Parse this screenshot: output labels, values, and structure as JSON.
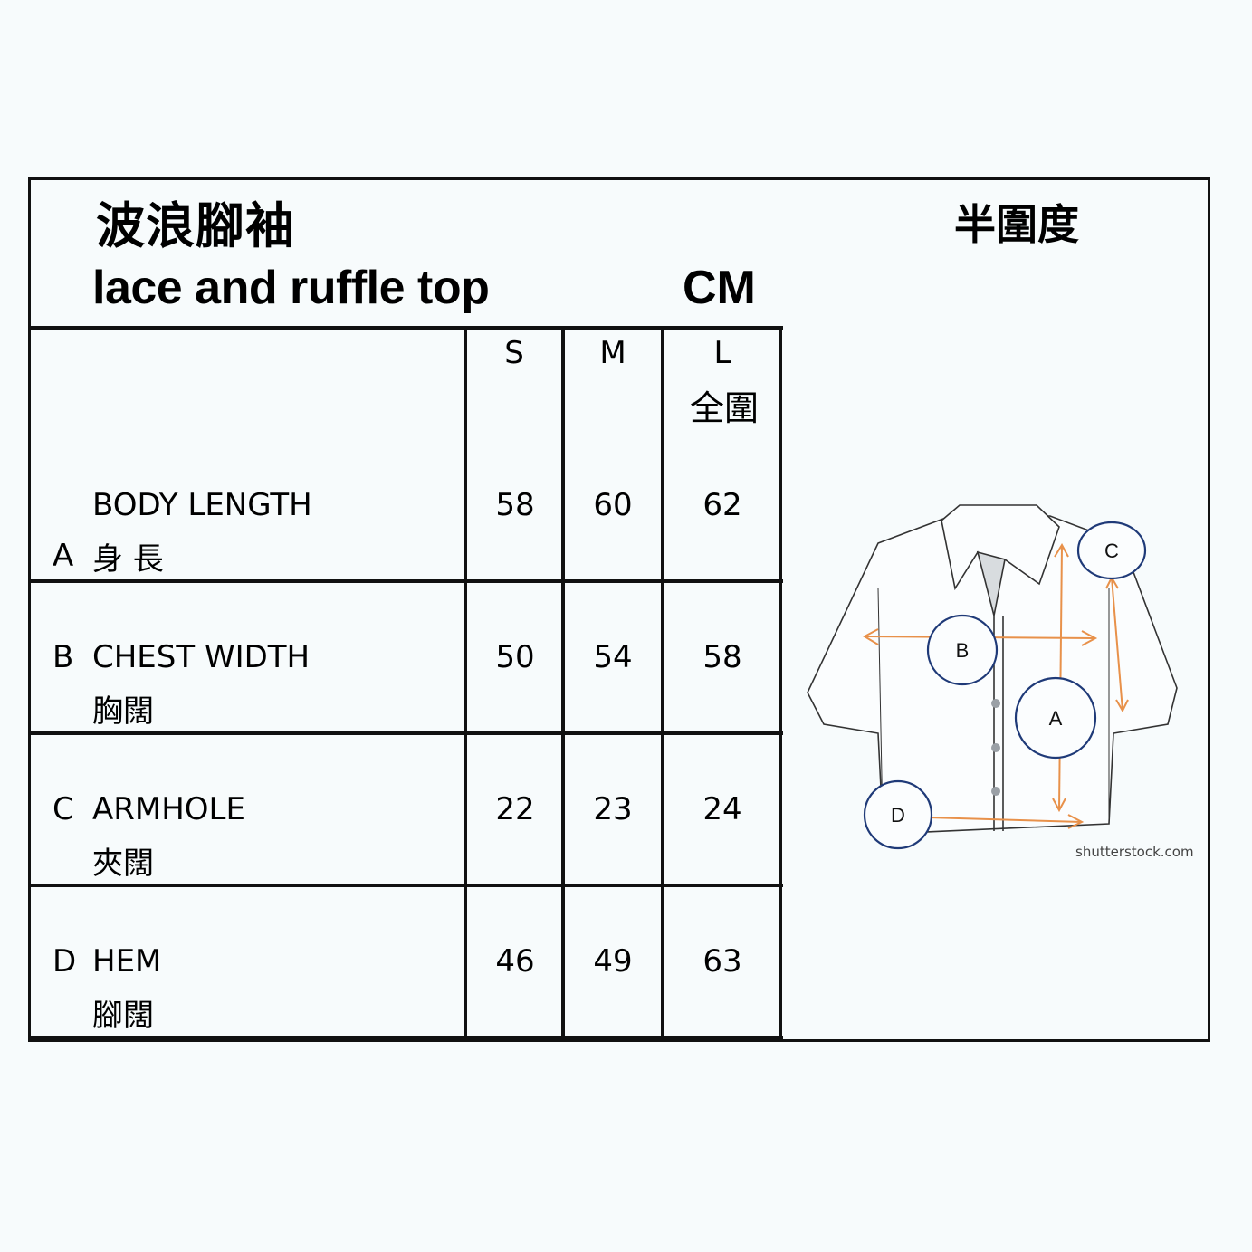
{
  "header": {
    "title_zh": "波浪腳袖",
    "title_en": "lace and ruffle top",
    "unit": "CM",
    "measure_note": "半圍度"
  },
  "table": {
    "columns": [
      "S",
      "M",
      "L"
    ],
    "full_circ_note": "全圍",
    "rows": [
      {
        "letter": "A",
        "label_en": "BODY LENGTH",
        "label_zh": "身 長",
        "values": [
          "58",
          "60",
          "62"
        ]
      },
      {
        "letter": "B",
        "label_en": "CHEST WIDTH",
        "label_zh": "胸闊",
        "values": [
          "50",
          "54",
          "58"
        ]
      },
      {
        "letter": "C",
        "label_en": "ARMHOLE",
        "label_zh": "夾闊",
        "values": [
          "22",
          "23",
          "24"
        ]
      },
      {
        "letter": "D",
        "label_en": "HEM",
        "label_zh": "腳闊",
        "values": [
          "46",
          "49",
          "63"
        ]
      }
    ]
  },
  "diagram": {
    "markers": [
      "A",
      "B",
      "C",
      "D"
    ],
    "watermark": "shutterstock.com",
    "arrow_color": "#e8914a",
    "marker_color": "#1f3a78"
  }
}
